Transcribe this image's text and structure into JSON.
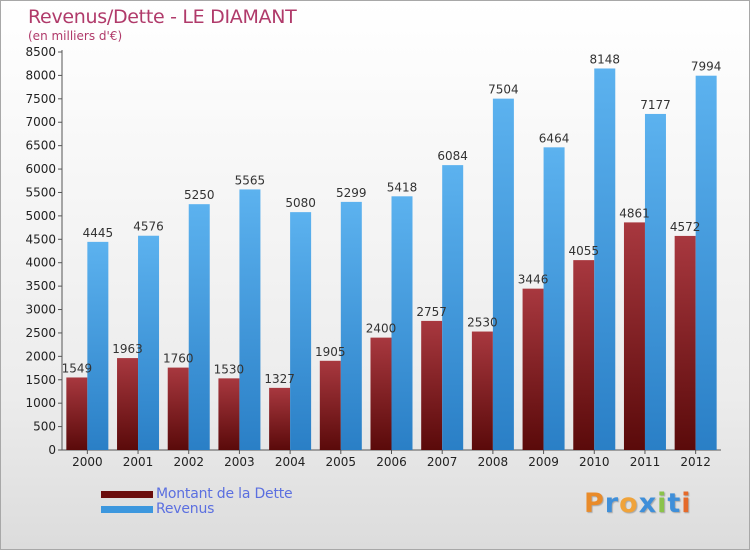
{
  "header": {
    "title": "Revenus/Dette - LE DIAMANT",
    "subtitle": "(en milliers d'€)"
  },
  "colors": {
    "dette": "#7a1a1a",
    "revenus": "#3c97de",
    "title": "#b03a6a",
    "legend_text": "#5b6fe0"
  },
  "brand": {
    "logo_text": "Proxiti"
  },
  "chart_data": {
    "type": "bar",
    "title": "Revenus/Dette - LE DIAMANT",
    "subtitle": "(en milliers d'€)",
    "xlabel": "",
    "ylabel": "",
    "ylim": [
      0,
      8500
    ],
    "yticks": [
      0,
      500,
      1000,
      1500,
      2000,
      2500,
      3000,
      3500,
      4000,
      4500,
      5000,
      5500,
      6000,
      6500,
      7000,
      7500,
      8000,
      8500
    ],
    "grid": false,
    "legend_position": "bottom-left",
    "categories": [
      "2000",
      "2001",
      "2002",
      "2003",
      "2004",
      "2005",
      "2006",
      "2007",
      "2008",
      "2009",
      "2010",
      "2011",
      "2012"
    ],
    "series": [
      {
        "name": "Montant de la Dette",
        "color": "#7a1a1a",
        "values": [
          1549,
          1963,
          1760,
          1530,
          1327,
          1905,
          2400,
          2757,
          2530,
          3446,
          4055,
          4861,
          4572
        ],
        "labels": [
          "1549",
          "1963",
          "1760",
          "1530",
          "1327",
          "1905",
          "2400",
          "2757",
          "2530",
          "3446",
          "4055",
          "4861",
          "4572"
        ]
      },
      {
        "name": "Revenus",
        "color": "#3c97de",
        "values": [
          4445,
          4576,
          5250,
          5565,
          5080,
          5299,
          5418,
          6084,
          7504,
          6464,
          8148,
          7177,
          7994
        ],
        "labels": [
          "4445",
          "4576",
          "5250",
          "5565",
          "5080",
          "5299",
          "5418",
          "6084",
          "7504",
          "6464",
          "8148",
          "7177",
          "7994"
        ]
      }
    ]
  }
}
